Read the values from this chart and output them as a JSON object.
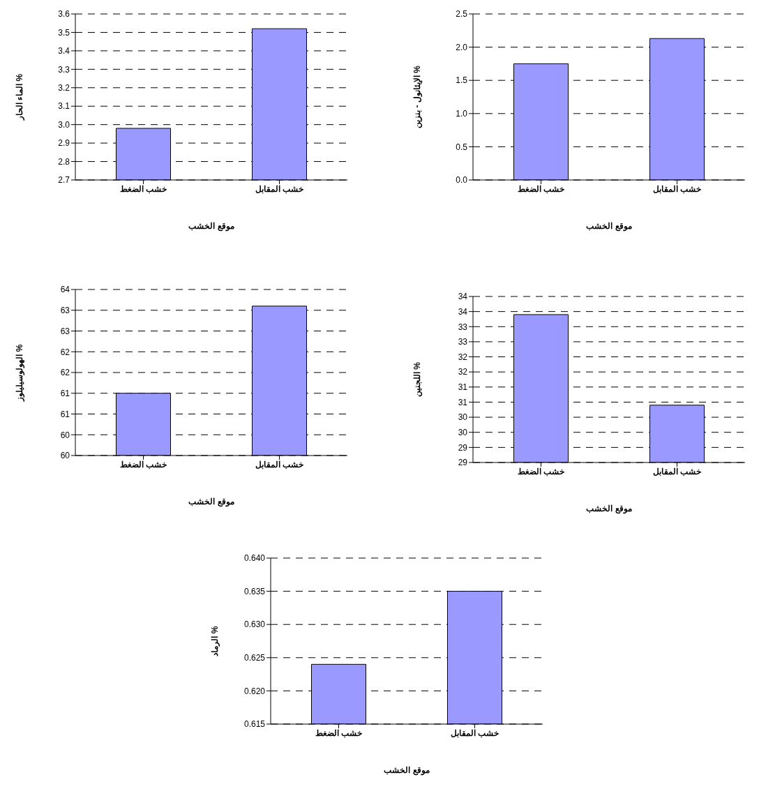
{
  "chart_data": [
    {
      "type": "bar",
      "categories": [
        "خشب الضغط",
        "خشب المقابل"
      ],
      "values": [
        2.98,
        3.52
      ],
      "color": "#9999ff",
      "xlabel": "موقع الخشب",
      "ylabel": "الماء الحار %",
      "ylim": [
        2.7,
        3.6
      ],
      "yticks": [
        {
          "value": 2.7,
          "label": "2.7"
        },
        {
          "value": 2.8,
          "label": "2.8"
        },
        {
          "value": 2.9,
          "label": "2.9"
        },
        {
          "value": 3.0,
          "label": "3.0"
        },
        {
          "value": 3.1,
          "label": "3.1"
        },
        {
          "value": 3.2,
          "label": "3.2"
        },
        {
          "value": 3.3,
          "label": "3.3"
        },
        {
          "value": 3.4,
          "label": "3.4"
        },
        {
          "value": 3.5,
          "label": "3.5"
        },
        {
          "value": 3.6,
          "label": "3.6"
        }
      ],
      "grid": "y"
    },
    {
      "type": "bar",
      "categories": [
        "خشب الضغط",
        "خشب المقابل"
      ],
      "values": [
        1.75,
        2.13
      ],
      "color": "#9999ff",
      "xlabel": "موقع الخشب",
      "ylabel": "الإيثانول - بنزين %",
      "ylim": [
        0,
        2.5
      ],
      "yticks": [
        {
          "value": 0,
          "label": "0.0"
        },
        {
          "value": 0.5,
          "label": "0.5"
        },
        {
          "value": 1,
          "label": "1.0"
        },
        {
          "value": 1.5,
          "label": "1.5"
        },
        {
          "value": 2,
          "label": "2.0"
        },
        {
          "value": 2.5,
          "label": "2.5"
        }
      ],
      "grid": "y"
    },
    {
      "type": "bar",
      "categories": [
        "خشب الضغط",
        "خشب المقابل"
      ],
      "values": [
        61.0,
        63.1
      ],
      "color": "#9999ff",
      "xlabel": "موقع الخشب",
      "ylabel": "الهولوسيليلوز %",
      "ylim": [
        59.5,
        63.5
      ],
      "yticks": [
        {
          "value": 59.5,
          "label": "60"
        },
        {
          "value": 60,
          "label": "60"
        },
        {
          "value": 60.5,
          "label": "61"
        },
        {
          "value": 61,
          "label": "61"
        },
        {
          "value": 61.5,
          "label": "62"
        },
        {
          "value": 62,
          "label": "62"
        },
        {
          "value": 62.5,
          "label": "63"
        },
        {
          "value": 63,
          "label": "63"
        },
        {
          "value": 63.5,
          "label": "64"
        }
      ],
      "grid": "y"
    },
    {
      "type": "bar",
      "categories": [
        "خشب الضغط",
        "خشب المقابل"
      ],
      "values": [
        33.4,
        30.4
      ],
      "color": "#9999ff",
      "xlabel": "موقع الخشب",
      "ylabel": "اللجنين %",
      "ylim": [
        28.5,
        34
      ],
      "yticks": [
        {
          "value": 28.5,
          "label": "29"
        },
        {
          "value": 29,
          "label": "29"
        },
        {
          "value": 29.5,
          "label": "30"
        },
        {
          "value": 30,
          "label": "30"
        },
        {
          "value": 30.5,
          "label": "31"
        },
        {
          "value": 31,
          "label": "31"
        },
        {
          "value": 31.5,
          "label": "32"
        },
        {
          "value": 32,
          "label": "32"
        },
        {
          "value": 32.5,
          "label": "33"
        },
        {
          "value": 33,
          "label": "33"
        },
        {
          "value": 33.5,
          "label": "34"
        },
        {
          "value": 34,
          "label": "34"
        }
      ],
      "grid": "y"
    },
    {
      "type": "bar",
      "categories": [
        "خشب الضغط",
        "خشب المقابل"
      ],
      "values": [
        0.624,
        0.635
      ],
      "color": "#9999ff",
      "xlabel": "موقع الخشب",
      "ylabel": "الرماد %",
      "ylim": [
        0.615,
        0.64
      ],
      "yticks": [
        {
          "value": 0.615,
          "label": "0.615"
        },
        {
          "value": 0.62,
          "label": "0.620"
        },
        {
          "value": 0.625,
          "label": "0.625"
        },
        {
          "value": 0.63,
          "label": "0.630"
        },
        {
          "value": 0.635,
          "label": "0.635"
        },
        {
          "value": 0.64,
          "label": "0.640"
        }
      ],
      "grid": "y"
    }
  ]
}
